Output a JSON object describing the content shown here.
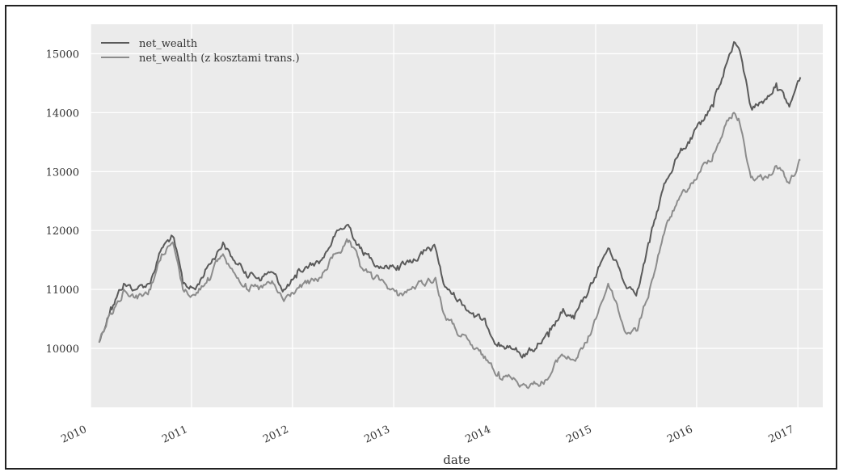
{
  "chart_data": {
    "type": "line",
    "xlabel": "date",
    "ylabel": "",
    "grid": true,
    "legend_position": "top-left",
    "xlim": [
      "2010-01-01",
      "2017-04-01"
    ],
    "ylim": [
      9000,
      15500
    ],
    "x_ticks": [
      "2010",
      "2011",
      "2012",
      "2013",
      "2014",
      "2015",
      "2016",
      "2017"
    ],
    "y_ticks": [
      10000,
      11000,
      12000,
      13000,
      14000,
      15000
    ],
    "colors": {
      "plot_bg": "#ebebeb",
      "grid": "#ffffff",
      "series_1": "#5a5a5a",
      "series_2": "#8c8c8c"
    },
    "series": [
      {
        "name": "net_wealth",
        "x": [
          "2010-02-01",
          "2010-03-15",
          "2010-05-01",
          "2010-06-15",
          "2010-08-01",
          "2010-09-15",
          "2010-10-25",
          "2010-12-01",
          "2011-01-15",
          "2011-03-01",
          "2011-04-25",
          "2011-06-01",
          "2011-07-15",
          "2011-09-01",
          "2011-10-15",
          "2011-12-01",
          "2012-01-15",
          "2012-03-01",
          "2012-04-15",
          "2012-06-01",
          "2012-07-20",
          "2012-09-01",
          "2012-10-15",
          "2012-12-01",
          "2013-01-15",
          "2013-03-01",
          "2013-04-15",
          "2013-06-01",
          "2013-06-30",
          "2013-07-15",
          "2013-09-01",
          "2013-10-15",
          "2013-12-01",
          "2014-01-15",
          "2014-03-01",
          "2014-04-15",
          "2014-06-01",
          "2014-07-15",
          "2014-09-01",
          "2014-10-15",
          "2014-12-01",
          "2015-01-15",
          "2015-02-15",
          "2015-03-15",
          "2015-04-15",
          "2015-06-01",
          "2015-07-15",
          "2015-09-01",
          "2015-10-15",
          "2015-12-01",
          "2016-01-15",
          "2016-03-01",
          "2016-04-15",
          "2016-05-15",
          "2016-06-01",
          "2016-07-15",
          "2016-09-01",
          "2016-10-15",
          "2016-12-01",
          "2017-01-10"
        ],
        "values": [
          10100,
          10700,
          11100,
          11000,
          11100,
          11700,
          11900,
          11100,
          11000,
          11400,
          11800,
          11500,
          11300,
          11200,
          11300,
          11000,
          11200,
          11400,
          11500,
          11900,
          12100,
          11700,
          11500,
          11400,
          11400,
          11500,
          11600,
          11700,
          11100,
          11000,
          10800,
          10600,
          10400,
          10100,
          10000,
          9900,
          10000,
          10200,
          10600,
          10500,
          10900,
          11400,
          11700,
          11500,
          11100,
          11000,
          11800,
          12700,
          13200,
          13500,
          13800,
          14100,
          14800,
          15200,
          15100,
          14100,
          14200,
          14500,
          14100,
          14600
        ]
      },
      {
        "name": "net_wealth (z kosztami trans.)",
        "x": [
          "2010-02-01",
          "2010-03-15",
          "2010-05-01",
          "2010-06-15",
          "2010-08-01",
          "2010-09-15",
          "2010-10-25",
          "2010-12-01",
          "2011-01-15",
          "2011-03-01",
          "2011-04-25",
          "2011-06-01",
          "2011-07-15",
          "2011-09-01",
          "2011-10-15",
          "2011-12-01",
          "2012-01-15",
          "2012-03-01",
          "2012-04-15",
          "2012-06-01",
          "2012-07-20",
          "2012-09-01",
          "2012-10-15",
          "2012-12-01",
          "2013-01-15",
          "2013-03-01",
          "2013-04-15",
          "2013-06-01",
          "2013-06-30",
          "2013-07-15",
          "2013-09-01",
          "2013-10-15",
          "2013-12-01",
          "2014-01-15",
          "2014-03-01",
          "2014-04-15",
          "2014-06-01",
          "2014-07-15",
          "2014-09-01",
          "2014-10-15",
          "2014-12-01",
          "2015-01-15",
          "2015-02-15",
          "2015-03-15",
          "2015-04-15",
          "2015-06-01",
          "2015-07-15",
          "2015-09-01",
          "2015-10-15",
          "2015-12-01",
          "2016-01-15",
          "2016-03-01",
          "2016-04-15",
          "2016-05-15",
          "2016-06-01",
          "2016-07-15",
          "2016-09-01",
          "2016-10-15",
          "2016-12-01",
          "2017-01-10"
        ],
        "values": [
          10100,
          10600,
          11000,
          10900,
          11000,
          11600,
          11800,
          11000,
          10900,
          11200,
          11600,
          11300,
          11100,
          11000,
          11100,
          10800,
          11000,
          11100,
          11200,
          11600,
          11800,
          11400,
          11200,
          11100,
          10900,
          11000,
          11100,
          11200,
          10600,
          10500,
          10200,
          10000,
          9800,
          9600,
          9500,
          9400,
          9400,
          9500,
          9900,
          9800,
          10100,
          10700,
          11100,
          10800,
          10300,
          10300,
          11000,
          11900,
          12400,
          12700,
          13000,
          13300,
          13800,
          14000,
          13900,
          12900,
          12900,
          13100,
          12800,
          13200
        ]
      }
    ]
  }
}
